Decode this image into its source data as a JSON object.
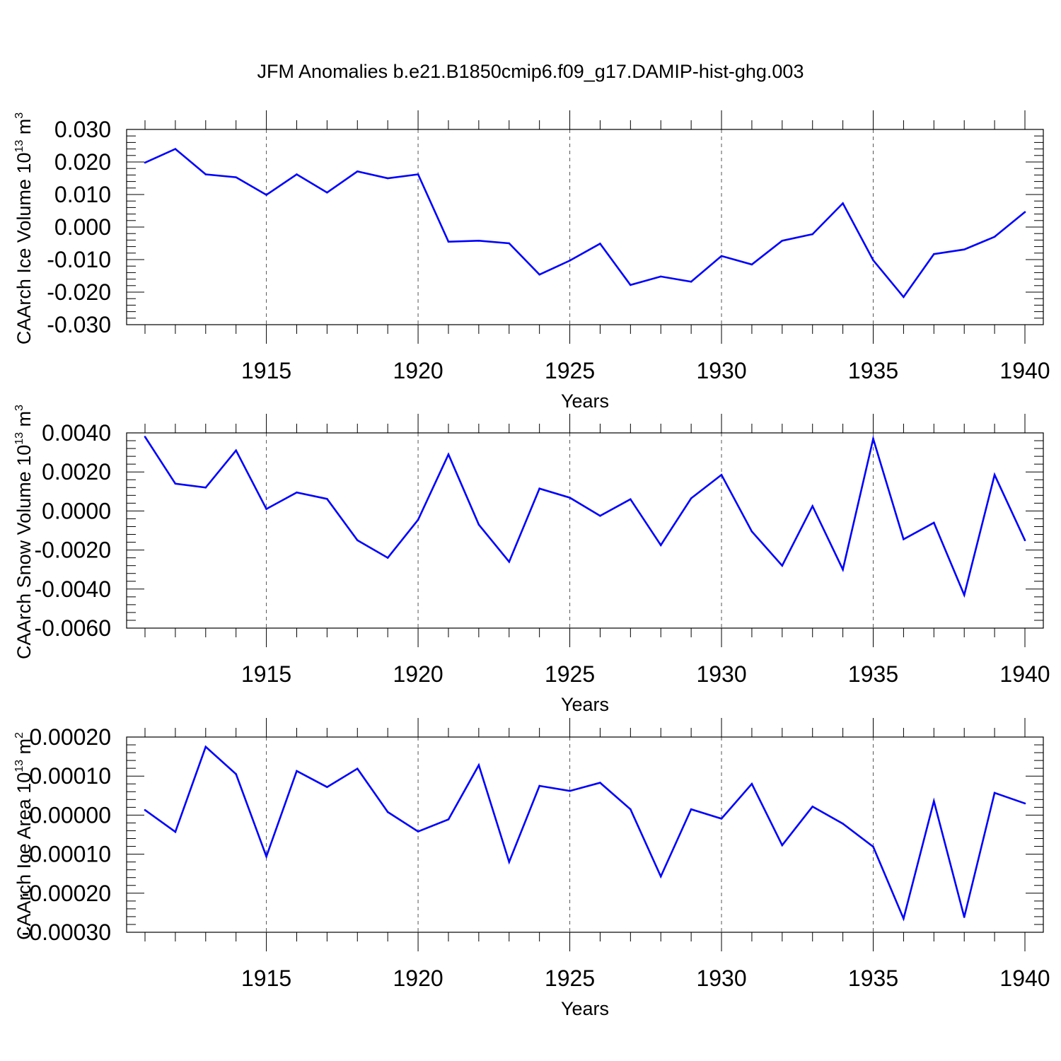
{
  "title": "JFM Anomalies b.e21.B1850cmip6.f09_g17.DAMIP-hist-ghg.003",
  "colors": {
    "series": "#0000ff",
    "axis": "#000000",
    "grid": "#555555"
  },
  "chart_data": [
    {
      "type": "line",
      "name": "ice_volume",
      "xlabel": "Years",
      "ylabel": "CAArch Ice Volume 10",
      "ylabel_sup": "13",
      "ylabel_unit": " m",
      "ylabel_unit_sup": "3",
      "xlim": [
        1911,
        1940
      ],
      "ylim": [
        -0.03,
        0.03
      ],
      "yticks": [
        -0.03,
        -0.02,
        -0.01,
        0.0,
        0.01,
        0.02,
        0.03
      ],
      "ytick_labels": [
        "-0.030",
        "-0.020",
        "-0.010",
        "0.000",
        "0.010",
        "0.020",
        "0.030"
      ],
      "xticks": [
        1915,
        1920,
        1925,
        1930,
        1935,
        1940
      ],
      "xtick_labels": [
        "1915",
        "1920",
        "1925",
        "1930",
        "1935",
        "1940"
      ],
      "grid": "dashed vertical at major x ticks",
      "x": [
        1911,
        1912,
        1913,
        1914,
        1915,
        1916,
        1917,
        1918,
        1919,
        1920,
        1921,
        1922,
        1923,
        1924,
        1925,
        1926,
        1927,
        1928,
        1929,
        1930,
        1931,
        1932,
        1933,
        1934,
        1935,
        1936,
        1937,
        1938,
        1939,
        1940
      ],
      "values": [
        0.0198,
        0.024,
        0.0162,
        0.0153,
        0.0099,
        0.0162,
        0.0106,
        0.0171,
        0.015,
        0.0162,
        -0.0045,
        -0.0042,
        -0.005,
        -0.0146,
        -0.0103,
        -0.0051,
        -0.0178,
        -0.0152,
        -0.0168,
        -0.0089,
        -0.0115,
        -0.0042,
        -0.0022,
        0.0073,
        -0.0102,
        -0.0215,
        -0.0083,
        -0.0069,
        -0.003,
        0.0046
      ]
    },
    {
      "type": "line",
      "name": "snow_volume",
      "xlabel": "Years",
      "ylabel": "CAArch Snow Volume 10",
      "ylabel_sup": "13",
      "ylabel_unit": " m",
      "ylabel_unit_sup": "3",
      "xlim": [
        1911,
        1940
      ],
      "ylim": [
        -0.006,
        0.004
      ],
      "yticks": [
        -0.006,
        -0.004,
        -0.002,
        0.0,
        0.002,
        0.004
      ],
      "ytick_labels": [
        "-0.0060",
        "-0.0040",
        "-0.0020",
        "0.0000",
        "0.0020",
        "0.0040"
      ],
      "xticks": [
        1915,
        1920,
        1925,
        1930,
        1935,
        1940
      ],
      "xtick_labels": [
        "1915",
        "1920",
        "1925",
        "1930",
        "1935",
        "1940"
      ],
      "grid": "dashed vertical at major x ticks",
      "x": [
        1911,
        1912,
        1913,
        1914,
        1915,
        1916,
        1917,
        1918,
        1919,
        1920,
        1921,
        1922,
        1923,
        1924,
        1925,
        1926,
        1927,
        1928,
        1929,
        1930,
        1931,
        1932,
        1933,
        1934,
        1935,
        1936,
        1937,
        1938,
        1939,
        1940
      ],
      "values": [
        0.0038,
        0.0014,
        0.0012,
        0.0031,
        0.0001,
        0.00095,
        0.00062,
        -0.0015,
        -0.0024,
        -0.00045,
        0.0029,
        -0.0007,
        -0.0026,
        0.00115,
        0.00068,
        -0.00025,
        0.0006,
        -0.00175,
        0.00065,
        0.00185,
        -0.00105,
        -0.0028,
        0.00025,
        -0.003,
        0.0037,
        -0.00145,
        -0.0006,
        -0.0043,
        0.00185,
        -0.0015
      ]
    },
    {
      "type": "line",
      "name": "ice_area",
      "xlabel": "Years",
      "ylabel": "CAArch Ice Area 10",
      "ylabel_sup": "13",
      "ylabel_unit": " m",
      "ylabel_unit_sup": "2",
      "xlim": [
        1911,
        1940
      ],
      "ylim": [
        -0.0003,
        0.0002
      ],
      "yticks": [
        -0.0003,
        -0.0002,
        -0.0001,
        0.0,
        0.0001,
        0.0002
      ],
      "ytick_labels": [
        "-0.00030",
        "-0.00020",
        "-0.00010",
        "0.00000",
        "0.00010",
        "0.00020"
      ],
      "xticks": [
        1915,
        1920,
        1925,
        1930,
        1935,
        1940
      ],
      "xtick_labels": [
        "1915",
        "1920",
        "1925",
        "1930",
        "1935",
        "1940"
      ],
      "grid": "dashed vertical at major x ticks",
      "x": [
        1911,
        1912,
        1913,
        1914,
        1915,
        1916,
        1917,
        1918,
        1919,
        1920,
        1921,
        1922,
        1923,
        1924,
        1925,
        1926,
        1927,
        1928,
        1929,
        1930,
        1931,
        1932,
        1933,
        1934,
        1935,
        1936,
        1937,
        1938,
        1939,
        1940
      ],
      "values": [
        1.3e-05,
        -4.3e-05,
        0.000175,
        0.000105,
        -0.000106,
        0.000113,
        7.2e-05,
        0.000119,
        8e-06,
        -4.2e-05,
        -1.1e-05,
        0.000128,
        -0.00012,
        7.5e-05,
        6.2e-05,
        8.3e-05,
        1.5e-05,
        -0.000157,
        1.5e-05,
        -9e-06,
        8e-05,
        -7.7e-05,
        2.2e-05,
        -2.2e-05,
        -8.1e-05,
        -0.000265,
        3.6e-05,
        -0.000261,
        5.7e-05,
        3e-05
      ]
    }
  ]
}
